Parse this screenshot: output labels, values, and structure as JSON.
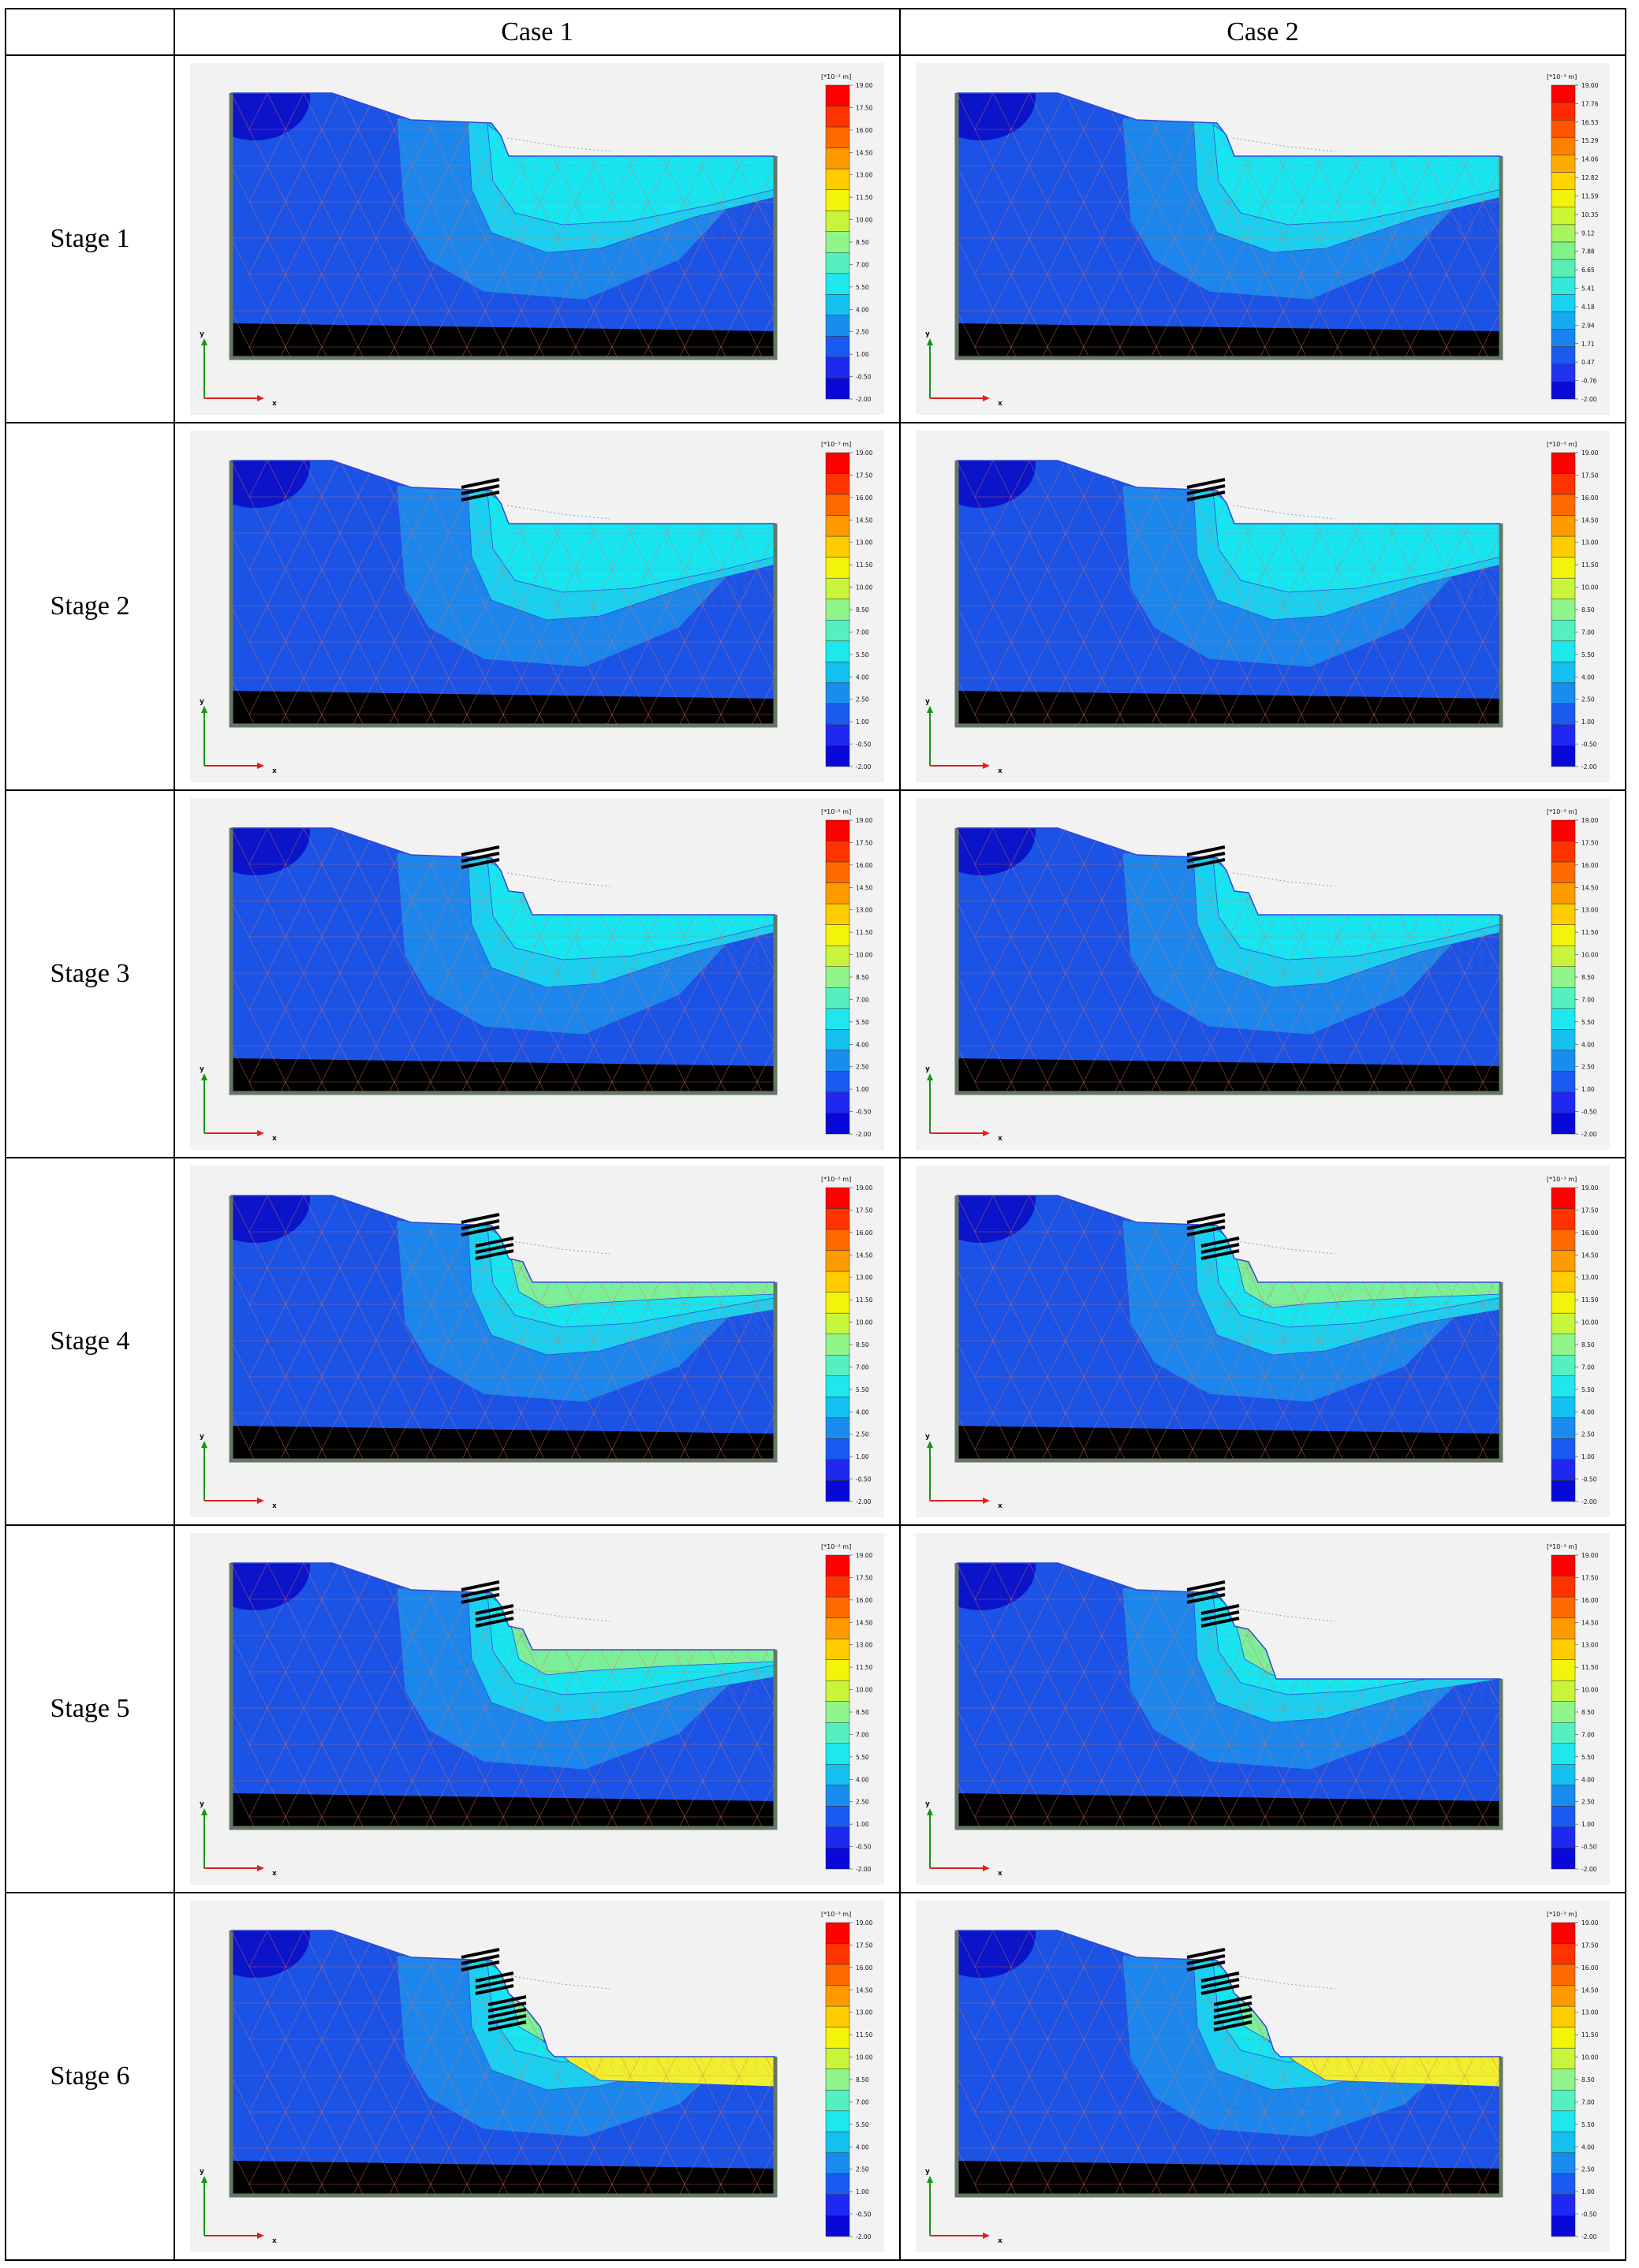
{
  "columns": [
    "",
    "Case  1",
    "Case  2"
  ],
  "stages": [
    "Stage  1",
    "Stage  2",
    "Stage  3",
    "Stage  4",
    "Stage  5",
    "Stage  6"
  ],
  "legend_unit": "[*10⁻³ m]",
  "axis_labels": {
    "x": "x",
    "y": "y"
  },
  "legend_default": [
    "19.00",
    "17.50",
    "16.00",
    "14.50",
    "13.00",
    "11.50",
    "10.00",
    "8.50",
    "7.00",
    "5.50",
    "4.00",
    "2.50",
    "1.00",
    "-0.50",
    "-2.00"
  ],
  "legend_case2_stage1": [
    "19.00",
    "17.76",
    "16.53",
    "15.29",
    "14.06",
    "12.82",
    "11.59",
    "10.35",
    "9.12",
    "7.88",
    "6.65",
    "5.41",
    "4.18",
    "2.94",
    "1.71",
    "0.47",
    "-0.76",
    "-2.00"
  ],
  "legend_colors_15": [
    "#ff0000",
    "#ff3300",
    "#ff6a00",
    "#ff9a00",
    "#ffcc00",
    "#f4f40a",
    "#c8f53c",
    "#8ff58a",
    "#55f0c0",
    "#1ee8ee",
    "#14c0f0",
    "#1a8cf0",
    "#1a5af0",
    "#1e28f0",
    "#0808d8"
  ],
  "legend_colors_18": [
    "#ff0000",
    "#ff2a00",
    "#ff5500",
    "#ff7f00",
    "#ffaa00",
    "#ffd400",
    "#f2f20c",
    "#cdf533",
    "#a6f55e",
    "#7ff28a",
    "#58eeb4",
    "#31e8dc",
    "#18d2f2",
    "#14aaf0",
    "#1a82f0",
    "#1a5af0",
    "#1e32f0",
    "#0a0ad8"
  ],
  "color_scheme": {
    "background": "#f2f2f2",
    "base_blue": "#1b53e6",
    "dark_blue": "#0b14c8",
    "mid_blue": "#1c86ec",
    "light_blue": "#19d0f0",
    "cyan": "#14e6f2",
    "green": "#7af09a",
    "yellow": "#f0f030",
    "mesh": "#e0745c",
    "anchor": "#000000",
    "axis_x": "#e02020",
    "axis_y": "#119911",
    "boundary": "#667766"
  },
  "panels": [
    {
      "stage": 1,
      "case": 1,
      "anchors": 0,
      "excavation_level": 1,
      "heave_level": 1,
      "legend": "default"
    },
    {
      "stage": 1,
      "case": 2,
      "anchors": 0,
      "excavation_level": 1,
      "heave_level": 1,
      "legend": "case2_stage1"
    },
    {
      "stage": 2,
      "case": 1,
      "anchors": 3,
      "excavation_level": 1,
      "heave_level": 1,
      "legend": "default"
    },
    {
      "stage": 2,
      "case": 2,
      "anchors": 3,
      "excavation_level": 1,
      "heave_level": 1,
      "legend": "default"
    },
    {
      "stage": 3,
      "case": 1,
      "anchors": 3,
      "excavation_level": 2,
      "heave_level": 2,
      "legend": "default"
    },
    {
      "stage": 3,
      "case": 2,
      "anchors": 3,
      "excavation_level": 2,
      "heave_level": 2,
      "legend": "default"
    },
    {
      "stage": 4,
      "case": 1,
      "anchors": 6,
      "excavation_level": 3,
      "heave_level": 3,
      "legend": "default"
    },
    {
      "stage": 4,
      "case": 2,
      "anchors": 6,
      "excavation_level": 3,
      "heave_level": 3,
      "legend": "default"
    },
    {
      "stage": 5,
      "case": 1,
      "anchors": 6,
      "excavation_level": 3,
      "heave_level": 3,
      "legend": "default"
    },
    {
      "stage": 5,
      "case": 2,
      "anchors": 6,
      "excavation_level": 4,
      "heave_level": 4,
      "legend": "default"
    },
    {
      "stage": 6,
      "case": 1,
      "anchors": 11,
      "excavation_level": 5,
      "heave_level": 5,
      "legend": "default"
    },
    {
      "stage": 6,
      "case": 2,
      "anchors": 11,
      "excavation_level": 5,
      "heave_level": 5,
      "legend": "default"
    }
  ]
}
